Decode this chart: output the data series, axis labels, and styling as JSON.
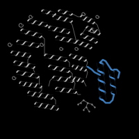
{
  "background_color": "#000000",
  "figure_size": [
    2.0,
    2.0
  ],
  "dpi": 100,
  "gray_color": "#aaaaaa",
  "blue_color": "#4488cc",
  "gray_alpha": 0.9,
  "blue_alpha": 0.95,
  "helix_lw": 1.0,
  "blue_helix_lw": 1.5,
  "xlim": [
    0,
    1
  ],
  "ylim": [
    0,
    1
  ]
}
